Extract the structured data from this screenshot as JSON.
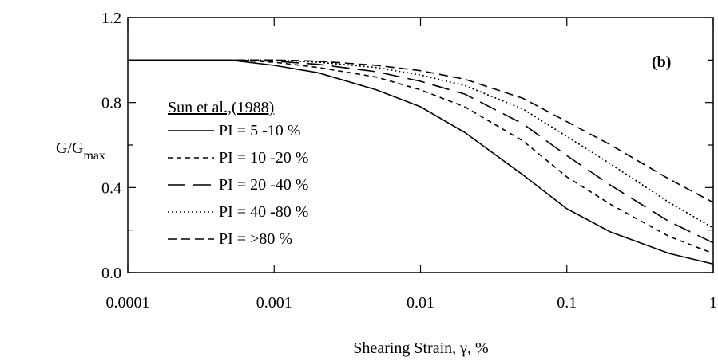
{
  "chart_data": {
    "type": "line",
    "panel_label": "(b)",
    "xlabel": "Shearing Strain, γ, %",
    "ylabel_main": "G/G",
    "ylabel_sub": "max",
    "x_scale": "log",
    "xlim": [
      0.0001,
      1
    ],
    "ylim": [
      0.0,
      1.2
    ],
    "x_ticks": [
      {
        "value": 0.0001,
        "label": "0.0001"
      },
      {
        "value": 0.001,
        "label": "0.001"
      },
      {
        "value": 0.01,
        "label": "0.01"
      },
      {
        "value": 0.1,
        "label": "0.1"
      },
      {
        "value": 1,
        "label": "1"
      }
    ],
    "y_ticks": [
      {
        "value": 0.0,
        "label": "0.0"
      },
      {
        "value": 0.4,
        "label": "0.4"
      },
      {
        "value": 0.8,
        "label": "0.8"
      },
      {
        "value": 1.2,
        "label": "1.2"
      }
    ],
    "legend": {
      "title": "Sun et al.,(1988)",
      "placement": "left"
    },
    "series": [
      {
        "name": "PI = 5 -10 %",
        "dash": "solid",
        "x": [
          0.0001,
          0.0005,
          0.001,
          0.002,
          0.005,
          0.01,
          0.02,
          0.05,
          0.1,
          0.2,
          0.5,
          1
        ],
        "y": [
          1.0,
          1.0,
          0.975,
          0.94,
          0.86,
          0.78,
          0.66,
          0.46,
          0.3,
          0.19,
          0.09,
          0.04
        ]
      },
      {
        "name": "PI = 10 -20 %",
        "dash": "short",
        "x": [
          0.0001,
          0.0005,
          0.001,
          0.002,
          0.005,
          0.01,
          0.02,
          0.05,
          0.1,
          0.2,
          0.5,
          1
        ],
        "y": [
          1.0,
          1.0,
          0.99,
          0.965,
          0.92,
          0.86,
          0.78,
          0.62,
          0.45,
          0.32,
          0.17,
          0.09
        ]
      },
      {
        "name": "PI = 20 -40 %",
        "dash": "long",
        "x": [
          0.0001,
          0.0005,
          0.001,
          0.002,
          0.005,
          0.01,
          0.02,
          0.05,
          0.1,
          0.2,
          0.5,
          1
        ],
        "y": [
          1.0,
          1.0,
          0.995,
          0.98,
          0.945,
          0.9,
          0.84,
          0.7,
          0.55,
          0.41,
          0.24,
          0.14
        ]
      },
      {
        "name": "PI = 40 -80 %",
        "dash": "dotted",
        "x": [
          0.0001,
          0.0005,
          0.001,
          0.002,
          0.005,
          0.01,
          0.02,
          0.05,
          0.1,
          0.2,
          0.5,
          1
        ],
        "y": [
          1.0,
          1.0,
          1.0,
          0.99,
          0.965,
          0.93,
          0.88,
          0.77,
          0.64,
          0.51,
          0.33,
          0.21
        ]
      },
      {
        "name": "PI = >80 %",
        "dash": "medium",
        "x": [
          0.0001,
          0.0005,
          0.001,
          0.002,
          0.005,
          0.01,
          0.02,
          0.05,
          0.1,
          0.2,
          0.5,
          1
        ],
        "y": [
          1.0,
          1.0,
          1.0,
          0.995,
          0.975,
          0.95,
          0.91,
          0.82,
          0.71,
          0.6,
          0.44,
          0.33
        ]
      }
    ]
  }
}
